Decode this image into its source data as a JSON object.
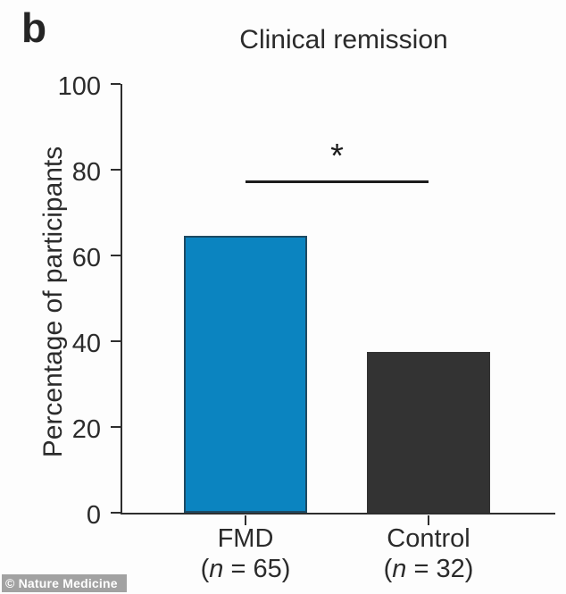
{
  "panel_label": "b",
  "watermark": "© Nature Medicine",
  "chart_data": {
    "type": "bar",
    "title": "Clinical remission",
    "categories": [
      "FMD",
      "Control"
    ],
    "values": [
      64.5,
      37.5
    ],
    "n_labels": [
      {
        "pre": "(",
        "n": "n",
        "post": " = 65)"
      },
      {
        "pre": "(",
        "n": "n",
        "post": " = 32)"
      }
    ],
    "xlabel": "",
    "ylabel": "Percentage of participants",
    "ylim": [
      0,
      100
    ],
    "yticks": [
      0,
      20,
      40,
      60,
      80,
      100
    ],
    "grid": false,
    "legend": "none",
    "colors": {
      "fmd_bar": "#0b84c0",
      "fmd_bar_border": "#1d4a63",
      "control_bar": "#333333",
      "control_bar_border": "#333333",
      "axis": "#2e2e2e",
      "text": "#2b2b2b"
    },
    "significance": {
      "label": "*",
      "y": 77.5,
      "between": [
        "FMD",
        "Control"
      ]
    }
  }
}
